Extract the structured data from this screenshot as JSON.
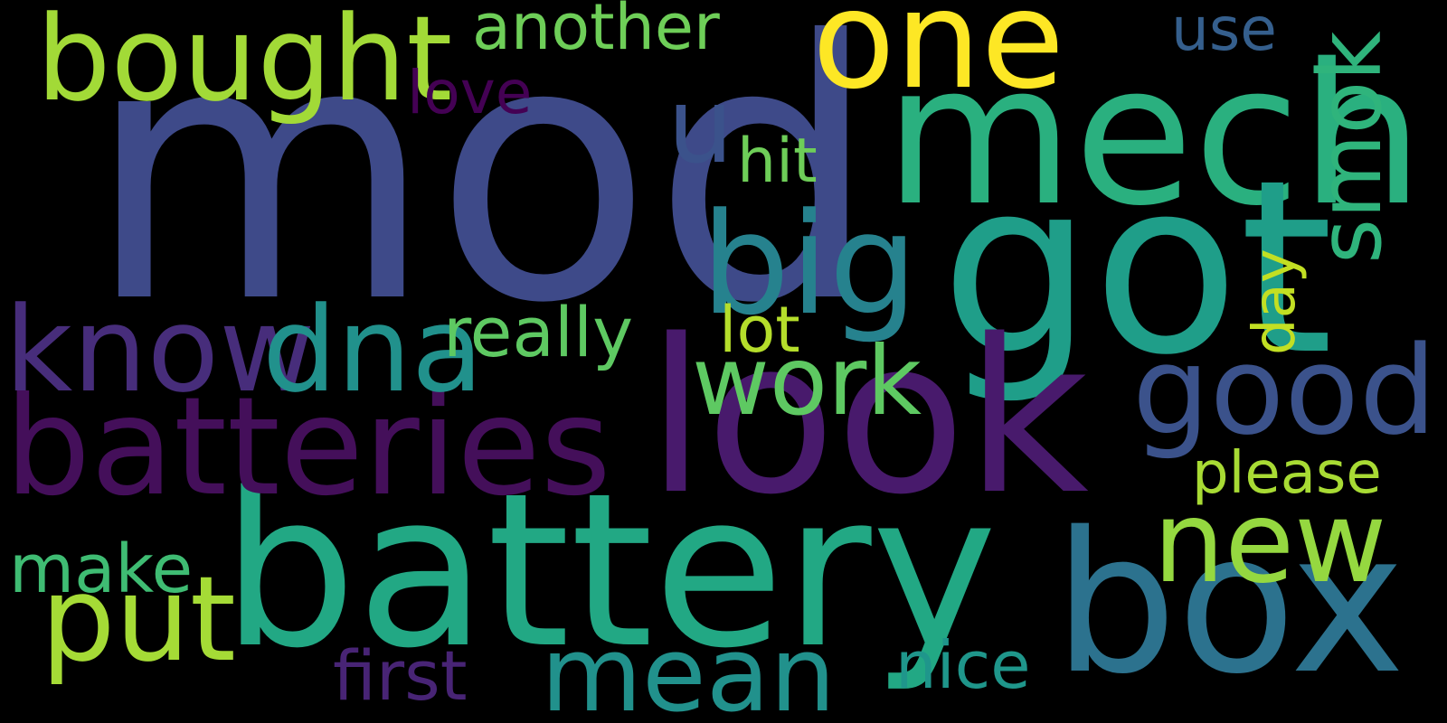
{
  "background_color": "#000000",
  "words": [
    {
      "id": "mod",
      "text": "mod",
      "color": "#3e4a89"
    },
    {
      "id": "mech",
      "text": "mech",
      "color": "#2ab07f"
    },
    {
      "id": "got",
      "text": "got",
      "color": "#1f9e89"
    },
    {
      "id": "look",
      "text": "look",
      "color": "#481a6c"
    },
    {
      "id": "battery",
      "text": "battery",
      "color": "#22a884"
    },
    {
      "id": "batteries",
      "text": "batteries",
      "color": "#440f5a"
    },
    {
      "id": "box",
      "text": "box",
      "color": "#2c728e"
    },
    {
      "id": "one",
      "text": "one",
      "color": "#fde725"
    },
    {
      "id": "bought",
      "text": "bought",
      "color": "#a2da37"
    },
    {
      "id": "big",
      "text": "big",
      "color": "#26828e"
    },
    {
      "id": "know",
      "text": "know",
      "color": "#472d7b"
    },
    {
      "id": "dna",
      "text": "dna",
      "color": "#21918c"
    },
    {
      "id": "work",
      "text": "work",
      "color": "#5ec962"
    },
    {
      "id": "good",
      "text": "good",
      "color": "#3b528b"
    },
    {
      "id": "new",
      "text": "new",
      "color": "#95d840"
    },
    {
      "id": "put",
      "text": "put",
      "color": "#a5db36"
    },
    {
      "id": "mean",
      "text": "mean",
      "color": "#21918c"
    },
    {
      "id": "u",
      "text": "u",
      "color": "#3b528b"
    },
    {
      "id": "smok",
      "text": "smok",
      "color": "#2fb47c"
    },
    {
      "id": "really",
      "text": "really",
      "color": "#5ec962"
    },
    {
      "id": "lot",
      "text": "lot",
      "color": "#b5de2b"
    },
    {
      "id": "another",
      "text": "another",
      "color": "#6ece58"
    },
    {
      "id": "love",
      "text": "love",
      "color": "#440154"
    },
    {
      "id": "hit",
      "text": "hit",
      "color": "#6ece58"
    },
    {
      "id": "use",
      "text": "use",
      "color": "#355f8d"
    },
    {
      "id": "day",
      "text": "day",
      "color": "#c2df23"
    },
    {
      "id": "please",
      "text": "please",
      "color": "#a8db34"
    },
    {
      "id": "make",
      "text": "make",
      "color": "#3fbc73"
    },
    {
      "id": "first",
      "text": "first",
      "color": "#482475"
    },
    {
      "id": "nice",
      "text": "nice",
      "color": "#1f968b"
    }
  ]
}
